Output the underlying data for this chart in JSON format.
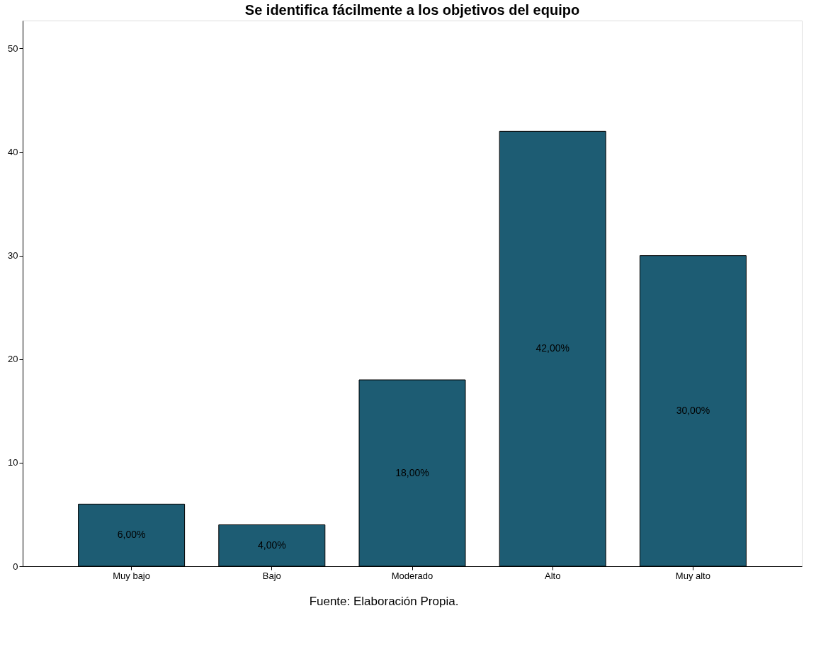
{
  "chart_data": {
    "type": "bar",
    "title": "Se identifica fácilmente a los objetivos del equipo",
    "categories": [
      "Muy bajo",
      "Bajo",
      "Moderado",
      "Alto",
      "Muy alto"
    ],
    "values": [
      6,
      4,
      18,
      42,
      30
    ],
    "value_labels": [
      "6,00%",
      "4,00%",
      "18,00%",
      "42,00%",
      "30,00%"
    ],
    "color": "#1d5c73",
    "ylim": [
      0,
      52.7
    ],
    "yticks": [
      0,
      10,
      20,
      30,
      40,
      50
    ],
    "grid": false,
    "annotations": [
      "Fuente: Elaboración Propia."
    ]
  }
}
